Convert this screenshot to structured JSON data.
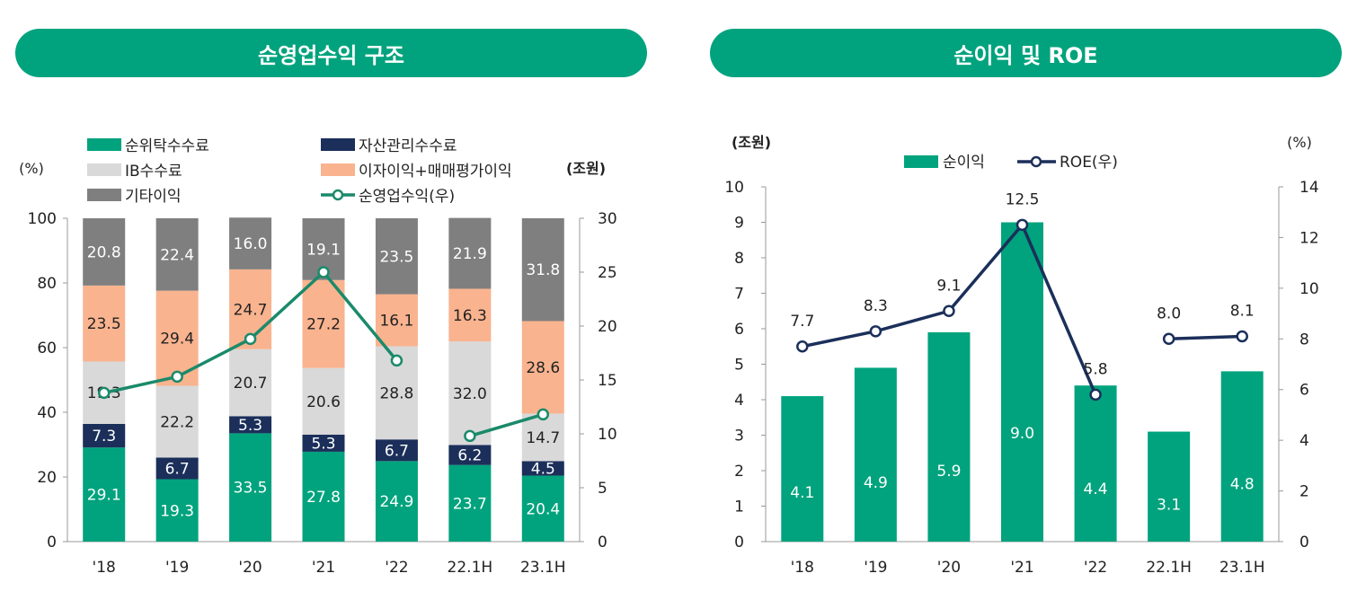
{
  "left_panel": {
    "title": "순영업수익 구조"
  },
  "right_panel": {
    "title": "순이익 및 ROE"
  },
  "chart_data": [
    {
      "type": "stacked-bar+line",
      "title": "순영업수익 구조",
      "categories": [
        "'18",
        "'19",
        "'20",
        "'21",
        "'22",
        "22.1H",
        "23.1H"
      ],
      "left_axis": {
        "unit": "(%)",
        "ylim": [
          0,
          100
        ],
        "ticks": [
          "0",
          "20",
          "40",
          "60",
          "80",
          "100"
        ]
      },
      "right_axis": {
        "unit": "(조원)",
        "ylim": [
          0,
          30
        ],
        "ticks": [
          "0",
          "5",
          "10",
          "15",
          "20",
          "25",
          "30"
        ]
      },
      "legend": [
        {
          "label": "순위탁수수료",
          "color": "#00a37d",
          "kind": "bar"
        },
        {
          "label": "자산관리수수료",
          "color": "#1b2f5a",
          "kind": "bar"
        },
        {
          "label": "IB수수료",
          "color": "#d9d9d9",
          "kind": "bar"
        },
        {
          "label": "이자이익+매매평가이익",
          "color": "#f9b38f",
          "kind": "bar"
        },
        {
          "label": "기타이익",
          "color": "#7f7f7f",
          "kind": "bar"
        },
        {
          "label": "순영업수익(우)",
          "color": "#1a8a6a",
          "kind": "line"
        }
      ],
      "series": [
        {
          "name": "순위탁수수료",
          "color": "#00a37d",
          "text_color": "#ffffff",
          "values": [
            29.1,
            19.3,
            33.5,
            27.8,
            24.9,
            23.7,
            20.4
          ],
          "labels": [
            "29.1",
            "19.3",
            "33.5",
            "27.8",
            "24.9",
            "23.7",
            "20.4"
          ]
        },
        {
          "name": "자산관리수수료",
          "color": "#1b2f5a",
          "text_color": "#ffffff",
          "values": [
            7.3,
            6.7,
            5.3,
            5.3,
            6.7,
            6.2,
            4.5
          ],
          "labels": [
            "7.3",
            "6.7",
            "5.3",
            "5.3",
            "6.7",
            "6.2",
            "4.5"
          ]
        },
        {
          "name": "IB수수료",
          "color": "#d9d9d9",
          "text_color": "#222222",
          "values": [
            19.3,
            22.2,
            20.7,
            20.6,
            28.8,
            32.0,
            14.7
          ],
          "labels": [
            "19.3",
            "22.2",
            "20.7",
            "20.6",
            "28.8",
            "32.0",
            "14.7"
          ]
        },
        {
          "name": "이자이익+매매평가이익",
          "color": "#f9b38f",
          "text_color": "#222222",
          "values": [
            23.5,
            29.4,
            24.7,
            27.2,
            16.1,
            16.3,
            28.6
          ],
          "labels": [
            "23.5",
            "29.4",
            "24.7",
            "27.2",
            "16.1",
            "16.3",
            "28.6"
          ]
        },
        {
          "name": "기타이익",
          "color": "#7f7f7f",
          "text_color": "#ffffff",
          "values": [
            20.8,
            22.4,
            16.0,
            19.1,
            23.5,
            21.9,
            31.8
          ],
          "labels": [
            "20.8",
            "22.4",
            "16.0",
            "19.1",
            "23.5",
            "21.9",
            "31.8"
          ]
        }
      ],
      "line": {
        "name": "순영업수익(우)",
        "color": "#1a8a6a",
        "segments": [
          {
            "indices": [
              0,
              1,
              2,
              3,
              4
            ],
            "values": [
              13.8,
              15.3,
              18.8,
              25.0,
              16.8
            ]
          },
          {
            "indices": [
              5,
              6
            ],
            "values": [
              9.8,
              11.8
            ]
          }
        ]
      }
    },
    {
      "type": "bar+line",
      "title": "순이익 및 ROE",
      "categories": [
        "'18",
        "'19",
        "'20",
        "'21",
        "'22",
        "22.1H",
        "23.1H"
      ],
      "left_axis": {
        "unit": "(조원)",
        "ylim": [
          0,
          10
        ],
        "ticks": [
          "0",
          "1",
          "2",
          "3",
          "4",
          "5",
          "6",
          "7",
          "8",
          "9",
          "10"
        ]
      },
      "right_axis": {
        "unit": "(%)",
        "ylim": [
          0,
          14
        ],
        "ticks": [
          "0",
          "2",
          "4",
          "6",
          "8",
          "10",
          "12",
          "14"
        ]
      },
      "legend": [
        {
          "label": "순이익",
          "color": "#00a37d",
          "kind": "bar"
        },
        {
          "label": "ROE(우)",
          "color": "#1b2f5a",
          "kind": "line"
        }
      ],
      "bars": {
        "name": "순이익",
        "color": "#00a37d",
        "values": [
          4.1,
          4.9,
          5.9,
          9.0,
          4.4,
          3.1,
          4.8
        ],
        "labels": [
          "4.1",
          "4.9",
          "5.9",
          "9.0",
          "4.4",
          "3.1",
          "4.8"
        ]
      },
      "line": {
        "name": "ROE(우)",
        "color": "#1b2f5a",
        "values": [
          7.7,
          8.3,
          9.1,
          12.5,
          5.8,
          8.0,
          8.1
        ],
        "labels": [
          "7.7",
          "8.3",
          "9.1",
          "12.5",
          "5.8",
          "8.0",
          "8.1"
        ],
        "segments": [
          {
            "indices": [
              0,
              1,
              2,
              3,
              4
            ]
          },
          {
            "indices": [
              5,
              6
            ]
          }
        ]
      }
    }
  ]
}
